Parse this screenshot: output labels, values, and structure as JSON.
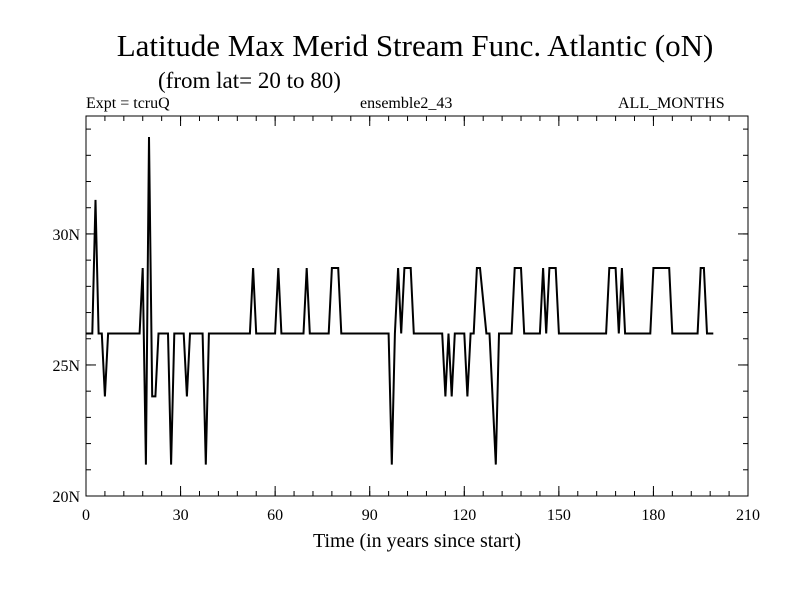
{
  "chart_data": {
    "type": "line",
    "title": "Latitude Max Merid Stream Func. Atlantic (oN)",
    "subtitle": "(from lat= 20 to 80)",
    "header_left": "Expt = tcruQ",
    "header_center": "ensemble2_43",
    "header_right": "ALL_MONTHS",
    "xlabel": "Time (in years since start)",
    "ylabel": "",
    "xlim": [
      0,
      210
    ],
    "ylim": [
      20,
      34.5
    ],
    "xticks": [
      0,
      30,
      60,
      90,
      120,
      150,
      180,
      210
    ],
    "xtick_labels": [
      "0",
      "30",
      "60",
      "90",
      "120",
      "150",
      "180",
      "210"
    ],
    "yticks": [
      20,
      25,
      30
    ],
    "ytick_labels": [
      "20N",
      "25N",
      "30N"
    ],
    "grid": false,
    "series": [
      {
        "name": "",
        "x": [
          0,
          2,
          3,
          4,
          5,
          6,
          7,
          8,
          17,
          18,
          19,
          20,
          21,
          22,
          23,
          24,
          26,
          27,
          28,
          31,
          32,
          33,
          34,
          37,
          38,
          39,
          40,
          52,
          53,
          54,
          60,
          61,
          62,
          69,
          70,
          71,
          77,
          78,
          80,
          81,
          96,
          97,
          98,
          99,
          100,
          101,
          103,
          104,
          113,
          114,
          115,
          116,
          117,
          118,
          120,
          121,
          122,
          123,
          124,
          125,
          127,
          128,
          130,
          131,
          132,
          135,
          136,
          138,
          139,
          144,
          145,
          146,
          147,
          149,
          150,
          151,
          165,
          166,
          168,
          169,
          170,
          171,
          179,
          180,
          185,
          186,
          194,
          195,
          196,
          197,
          199
        ],
        "values": [
          26.2,
          26.2,
          31.3,
          26.2,
          26.2,
          23.8,
          26.2,
          26.2,
          26.2,
          28.7,
          21.2,
          33.7,
          23.8,
          23.8,
          26.2,
          26.2,
          26.2,
          21.2,
          26.2,
          26.2,
          23.8,
          26.2,
          26.2,
          26.2,
          21.2,
          26.2,
          26.2,
          26.2,
          28.7,
          26.2,
          26.2,
          28.7,
          26.2,
          26.2,
          28.7,
          26.2,
          26.2,
          28.7,
          28.7,
          26.2,
          26.2,
          21.2,
          26.2,
          28.7,
          26.2,
          28.7,
          28.7,
          26.2,
          26.2,
          23.8,
          26.2,
          23.8,
          26.2,
          26.2,
          26.2,
          23.8,
          26.2,
          26.2,
          28.7,
          28.7,
          26.2,
          26.2,
          21.2,
          26.2,
          26.2,
          26.2,
          28.7,
          28.7,
          26.2,
          26.2,
          28.7,
          26.2,
          28.7,
          28.7,
          26.2,
          26.2,
          26.2,
          28.7,
          28.7,
          26.2,
          28.7,
          26.2,
          26.2,
          28.7,
          28.7,
          26.2,
          26.2,
          28.7,
          28.7,
          26.2,
          26.2
        ]
      }
    ]
  }
}
